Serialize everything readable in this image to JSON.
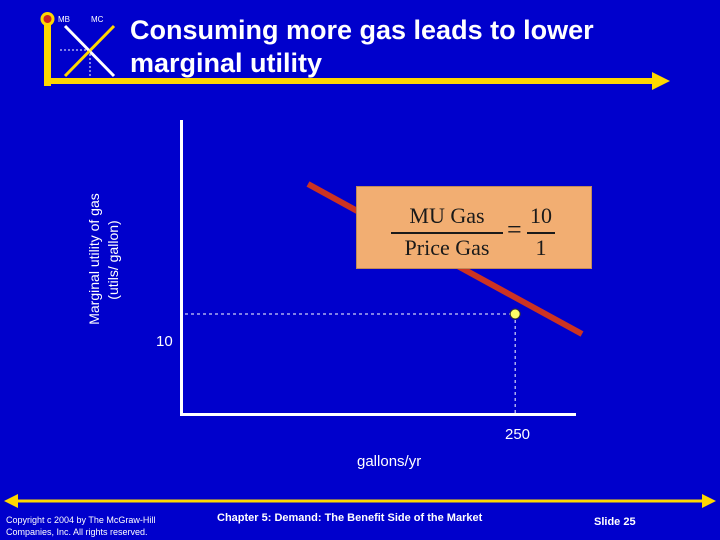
{
  "slide": {
    "title": "Consuming more gas leads to lower marginal utility",
    "logo": {
      "mb": "MB",
      "mc": "MC"
    },
    "colors": {
      "background": "#0000CC",
      "accent": "#FFD700",
      "line": "#CC3322",
      "formula_fill": "#F2AE72"
    }
  },
  "chart": {
    "ylabel_line1": "Marginal utility of gas",
    "ylabel_line2": "(utils/ gallon)",
    "xlabel": "gallons/yr",
    "y_tick": "10",
    "x_tick": "250"
  },
  "formula": {
    "left_num": "MU Gas",
    "left_den": "Price Gas",
    "equals": "=",
    "right_num": "10",
    "right_den": "1"
  },
  "footer": {
    "copyright_line1": "Copyright c 2004 by The McGraw-Hill",
    "copyright_line2": "Companies, Inc.  All rights reserved.",
    "chapter": "Chapter 5: Demand: The Benefit Side of the Market",
    "slide_number": "Slide 25"
  },
  "chart_data": {
    "type": "line",
    "title": "Consuming more gas leads to lower marginal utility",
    "xlabel": "gallons/yr",
    "ylabel": "Marginal utility of gas (utils/ gallon)",
    "series": [
      {
        "x": [
          95,
          300
        ],
        "y": [
          23,
          8
        ]
      }
    ],
    "highlight_point": {
      "x": 250,
      "y": 10
    },
    "xlim": [
      0,
      300
    ],
    "ylim": [
      0,
      30
    ]
  }
}
